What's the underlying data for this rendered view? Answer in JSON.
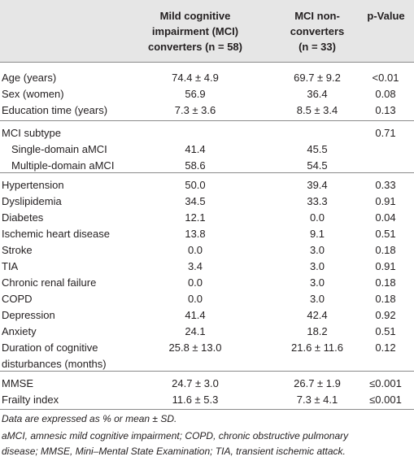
{
  "header": {
    "col1": [
      "Mild cognitive",
      "impairment (MCI)",
      "converters (n = 58)"
    ],
    "col2": [
      "MCI non-",
      "converters",
      "(n = 33)"
    ],
    "col3": "p-Value"
  },
  "rows": [
    {
      "label": "Age (years)",
      "conv": "74.4 ± 4.9",
      "nonconv": "69.7 ± 9.2",
      "p": "<0.01"
    },
    {
      "label": "Sex (women)",
      "conv": "56.9",
      "nonconv": "36.4",
      "p": "0.08"
    },
    {
      "label": "Education time (years)",
      "conv": "7.3 ± 3.6",
      "nonconv": "8.5 ± 3.4",
      "p": "0.13"
    },
    {
      "label": "MCI subtype",
      "conv": "",
      "nonconv": "",
      "p": "0.71"
    },
    {
      "label": "Single-domain aMCI",
      "conv": "41.4",
      "nonconv": "45.5",
      "p": ""
    },
    {
      "label": "Multiple-domain aMCI",
      "conv": "58.6",
      "nonconv": "54.5",
      "p": ""
    },
    {
      "label": "Hypertension",
      "conv": "50.0",
      "nonconv": "39.4",
      "p": "0.33"
    },
    {
      "label": "Dyslipidemia",
      "conv": "34.5",
      "nonconv": "33.3",
      "p": "0.91"
    },
    {
      "label": "Diabetes",
      "conv": "12.1",
      "nonconv": "0.0",
      "p": "0.04"
    },
    {
      "label": "Ischemic heart disease",
      "conv": "13.8",
      "nonconv": "9.1",
      "p": "0.51"
    },
    {
      "label": "Stroke",
      "conv": "0.0",
      "nonconv": "3.0",
      "p": "0.18"
    },
    {
      "label": "TIA",
      "conv": "3.4",
      "nonconv": "3.0",
      "p": "0.91"
    },
    {
      "label": "Chronic renal failure",
      "conv": "0.0",
      "nonconv": "3.0",
      "p": "0.18"
    },
    {
      "label": "COPD",
      "conv": "0.0",
      "nonconv": "3.0",
      "p": "0.18"
    },
    {
      "label": "Depression",
      "conv": "41.4",
      "nonconv": "42.4",
      "p": "0.92"
    },
    {
      "label": "Anxiety",
      "conv": "24.1",
      "nonconv": "18.2",
      "p": "0.51"
    },
    {
      "label": [
        "Duration of cognitive",
        "disturbances (months)"
      ],
      "conv": "25.8 ± 13.0",
      "nonconv": "21.6 ± 11.6",
      "p": "0.12"
    },
    {
      "label": "MMSE",
      "conv": "24.7 ± 3.0",
      "nonconv": "26.7 ± 1.9",
      "p": "≤0.001"
    },
    {
      "label": "Frailty index",
      "conv": "11.6 ± 5.3",
      "nonconv": "7.3 ± 4.1",
      "p": "≤0.001"
    }
  ],
  "footnotes": [
    "Data are expressed as % or mean ± SD.",
    "aMCI, amnesic mild cognitive impairment; COPD, chronic obstructive pulmonary",
    "disease; MMSE, Mini–Mental State Examination; TIA, transient ischemic attack."
  ]
}
